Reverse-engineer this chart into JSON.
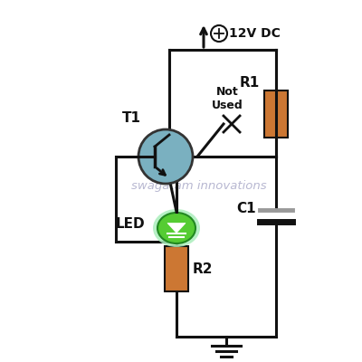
{
  "bg_color": "#ffffff",
  "wire_color": "#111111",
  "resistor_color": "#cc7733",
  "transistor_circle_color": "#7ab0c0",
  "transistor_border": "#333333",
  "led_green": "#55cc33",
  "led_green_light": "#aaeebb",
  "led_green_dark": "#228822",
  "text_color": "#111111",
  "watermark_color": "#b0b0cc",
  "watermark": "swagatam innovations",
  "r1_label": "R1",
  "r2_label": "R2",
  "c1_label": "C1",
  "t1_label": "T1",
  "led_label": "LED",
  "not_used_label": "Not\nUsed",
  "vcc_label": "12V DC",
  "cap_plate1_color": "#999999",
  "cap_plate2_color": "#111111"
}
